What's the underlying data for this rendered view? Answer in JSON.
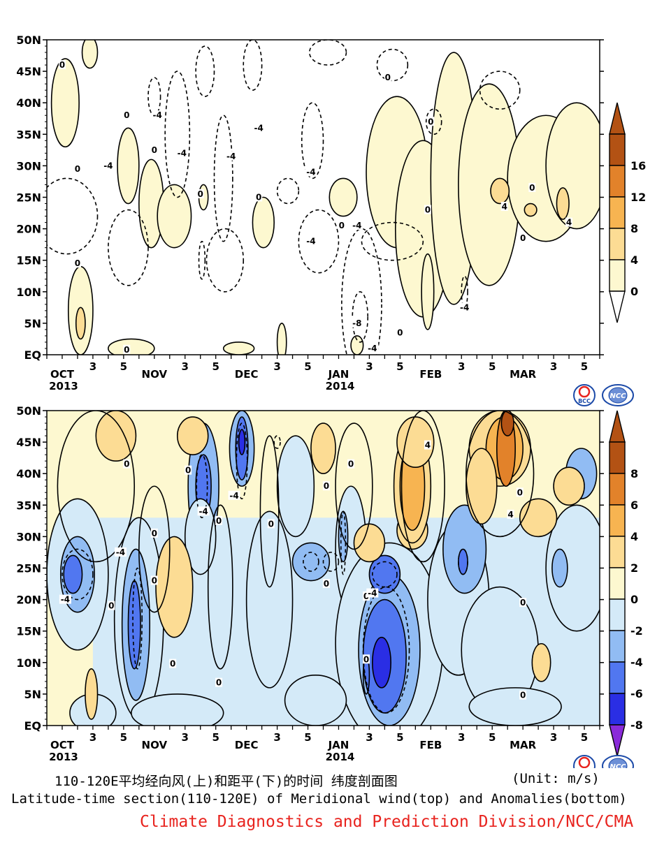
{
  "colors": {
    "pos1": "#fdf8d0",
    "pos2": "#fcdc94",
    "pos3": "#f7b451",
    "pos4": "#e2822a",
    "pos5": "#b35214",
    "neg1": "#d4eaf8",
    "neg2": "#91bcf3",
    "neg3": "#5177f0",
    "neg4": "#2a2ee4",
    "neg5": "#8a2bd9",
    "credit": "#e8231e"
  },
  "logos": {
    "bcc": "BCC",
    "ncc": "NCC"
  },
  "chart_data": [
    {
      "type": "heatmap",
      "title": "",
      "xlabel": "",
      "ylabel": "",
      "ylim": [
        0,
        50
      ],
      "y_ticks": [
        0,
        5,
        10,
        15,
        20,
        25,
        30,
        35,
        40,
        45,
        50
      ],
      "y_tick_labels": [
        "EQ",
        "5N",
        "10N",
        "15N",
        "20N",
        "25N",
        "30N",
        "35N",
        "40N",
        "45N",
        "50N"
      ],
      "x_ticks": [
        {
          "day": 0,
          "label": "OCT",
          "sub": "2013"
        },
        {
          "day": 2,
          "label": "3"
        },
        {
          "day": 4,
          "label": "5"
        },
        {
          "day": 6,
          "label": "NOV"
        },
        {
          "day": 8,
          "label": "3"
        },
        {
          "day": 10,
          "label": "5"
        },
        {
          "day": 12,
          "label": "DEC"
        },
        {
          "day": 14,
          "label": "3"
        },
        {
          "day": 16,
          "label": "5"
        },
        {
          "day": 18,
          "label": "JAN",
          "sub": "2014"
        },
        {
          "day": 20,
          "label": "3"
        },
        {
          "day": 22,
          "label": "5"
        },
        {
          "day": 24,
          "label": "FEB"
        },
        {
          "day": 26,
          "label": "3"
        },
        {
          "day": 28,
          "label": "5"
        },
        {
          "day": 30,
          "label": "MAR"
        },
        {
          "day": 32,
          "label": "3"
        },
        {
          "day": 34,
          "label": "5"
        }
      ],
      "xlim": [
        -1,
        35
      ],
      "colorbar": {
        "levels": [
          "0",
          "4",
          "8",
          "12",
          "16"
        ],
        "colors": [
          "#fdf8d0",
          "#fcdc94",
          "#f7b451",
          "#e2822a",
          "#b35214"
        ],
        "triangle_bottom": "#ffffff",
        "triangle_top": "#b35214"
      },
      "contour_labels": [
        {
          "x": 0.0,
          "y": 46,
          "t": "0"
        },
        {
          "x": 1.0,
          "y": 29.5,
          "t": "0"
        },
        {
          "x": 3.0,
          "y": 30,
          "t": "-4"
        },
        {
          "x": 4.2,
          "y": 38,
          "t": "0"
        },
        {
          "x": 6.0,
          "y": 32.5,
          "t": "0"
        },
        {
          "x": 6.2,
          "y": 38,
          "t": "-4"
        },
        {
          "x": 7.8,
          "y": 32,
          "t": "-4"
        },
        {
          "x": 9.0,
          "y": 25.5,
          "t": "0"
        },
        {
          "x": 11.0,
          "y": 31.5,
          "t": "-4"
        },
        {
          "x": 12.8,
          "y": 36,
          "t": "-4"
        },
        {
          "x": 12.8,
          "y": 25,
          "t": "0"
        },
        {
          "x": 16.2,
          "y": 29,
          "t": "-4"
        },
        {
          "x": 16.2,
          "y": 18,
          "t": "-4"
        },
        {
          "x": 18.2,
          "y": 20.5,
          "t": "0"
        },
        {
          "x": 19.2,
          "y": 20.5,
          "t": "-4"
        },
        {
          "x": 21.2,
          "y": 44,
          "t": "0"
        },
        {
          "x": 19.2,
          "y": 5,
          "t": "-8"
        },
        {
          "x": 20.2,
          "y": 1,
          "t": "-4"
        },
        {
          "x": 24.0,
          "y": 37,
          "t": "0"
        },
        {
          "x": 23.8,
          "y": 23,
          "t": "0"
        },
        {
          "x": 26.2,
          "y": 7.5,
          "t": "-4"
        },
        {
          "x": 28.8,
          "y": 23.5,
          "t": "4"
        },
        {
          "x": 30.6,
          "y": 26.5,
          "t": "0"
        },
        {
          "x": 30.0,
          "y": 18.5,
          "t": "0"
        },
        {
          "x": 33.0,
          "y": 21,
          "t": "4"
        },
        {
          "x": 22.0,
          "y": 3.5,
          "t": "0"
        },
        {
          "x": 4.2,
          "y": 0.8,
          "t": "0"
        },
        {
          "x": 1.0,
          "y": 14.5,
          "t": "0"
        }
      ]
    },
    {
      "type": "heatmap",
      "title": "",
      "xlabel": "",
      "ylabel": "",
      "ylim": [
        0,
        50
      ],
      "y_ticks": [
        0,
        5,
        10,
        15,
        20,
        25,
        30,
        35,
        40,
        45,
        50
      ],
      "y_tick_labels": [
        "EQ",
        "5N",
        "10N",
        "15N",
        "20N",
        "25N",
        "30N",
        "35N",
        "40N",
        "45N",
        "50N"
      ],
      "x_ticks": [
        {
          "day": 0,
          "label": "OCT",
          "sub": "2013"
        },
        {
          "day": 2,
          "label": "3"
        },
        {
          "day": 4,
          "label": "5"
        },
        {
          "day": 6,
          "label": "NOV"
        },
        {
          "day": 8,
          "label": "3"
        },
        {
          "day": 10,
          "label": "5"
        },
        {
          "day": 12,
          "label": "DEC"
        },
        {
          "day": 14,
          "label": "3"
        },
        {
          "day": 16,
          "label": "5"
        },
        {
          "day": 18,
          "label": "JAN",
          "sub": "2014"
        },
        {
          "day": 20,
          "label": "3"
        },
        {
          "day": 22,
          "label": "5"
        },
        {
          "day": 24,
          "label": "FEB"
        },
        {
          "day": 26,
          "label": "3"
        },
        {
          "day": 28,
          "label": "5"
        },
        {
          "day": 30,
          "label": "MAR"
        },
        {
          "day": 32,
          "label": "3"
        },
        {
          "day": 34,
          "label": "5"
        }
      ],
      "xlim": [
        -1,
        35
      ],
      "colorbar": {
        "levels": [
          "-8",
          "-6",
          "-4",
          "-2",
          "0",
          "2",
          "4",
          "6",
          "8"
        ],
        "colors": [
          "#2a2ee4",
          "#5177f0",
          "#91bcf3",
          "#d4eaf8",
          "#fdf8d0",
          "#fcdc94",
          "#f7b451",
          "#e2822a",
          "#b35214"
        ],
        "triangle_bottom": "#8a2bd9",
        "triangle_top": "#b35214"
      },
      "contour_labels": [
        {
          "x": 0.2,
          "y": 20,
          "t": "-4"
        },
        {
          "x": 3.8,
          "y": 27.5,
          "t": "-4"
        },
        {
          "x": 4.2,
          "y": 41.5,
          "t": "0"
        },
        {
          "x": 3.2,
          "y": 19,
          "t": "0"
        },
        {
          "x": 6.0,
          "y": 30.5,
          "t": "0"
        },
        {
          "x": 6.0,
          "y": 23,
          "t": "0"
        },
        {
          "x": 8.2,
          "y": 40.5,
          "t": "0"
        },
        {
          "x": 9.2,
          "y": 34,
          "t": "-4"
        },
        {
          "x": 10.2,
          "y": 32.5,
          "t": "0"
        },
        {
          "x": 11.2,
          "y": 36.5,
          "t": "-4"
        },
        {
          "x": 13.6,
          "y": 32,
          "t": "0"
        },
        {
          "x": 7.2,
          "y": 9.8,
          "t": "0"
        },
        {
          "x": 10.2,
          "y": 6.8,
          "t": "0"
        },
        {
          "x": 17.2,
          "y": 22.5,
          "t": "0"
        },
        {
          "x": 17.2,
          "y": 38,
          "t": "0"
        },
        {
          "x": 18.8,
          "y": 41.5,
          "t": "0"
        },
        {
          "x": 19.8,
          "y": 20.5,
          "t": "0"
        },
        {
          "x": 20.2,
          "y": 21,
          "t": "-4"
        },
        {
          "x": 19.8,
          "y": 10.5,
          "t": "0"
        },
        {
          "x": 23.8,
          "y": 44.5,
          "t": "4"
        },
        {
          "x": 29.2,
          "y": 33.5,
          "t": "4"
        },
        {
          "x": 29.8,
          "y": 37,
          "t": "0"
        },
        {
          "x": 30.0,
          "y": 19.5,
          "t": "0"
        },
        {
          "x": 30.0,
          "y": 4.8,
          "t": "0"
        }
      ]
    }
  ],
  "captions": {
    "cn": "110-120E平均经向风(上)和距平(下)的时间 纬度剖面图",
    "unit": "(Unit: m/s)",
    "en": "Latitude-time section(110-120E) of Meridional wind(top) and Anomalies(bottom)",
    "credit": "Climate Diagnostics and Prediction Division/NCC/CMA"
  }
}
